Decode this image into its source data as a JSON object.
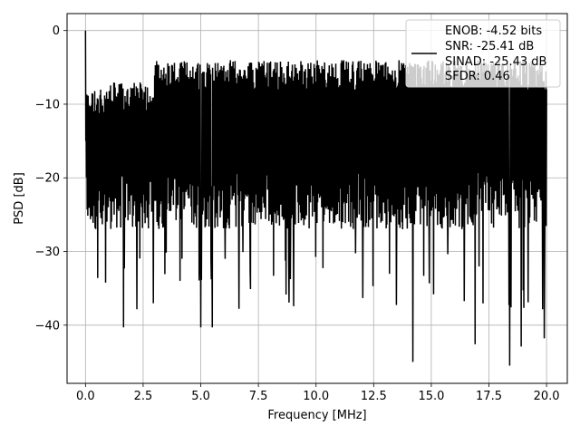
{
  "chart_data": {
    "type": "line",
    "title": "",
    "xlabel": "Frequency [MHz]",
    "ylabel": "PSD [dB]",
    "xlim": [
      -0.8,
      20.9
    ],
    "ylim": [
      -47.9,
      2.3
    ],
    "xticks": [
      0.0,
      2.5,
      5.0,
      7.5,
      10.0,
      12.5,
      15.0,
      17.5,
      20.0
    ],
    "xtick_labels": [
      "0.0",
      "2.5",
      "5.0",
      "7.5",
      "10.0",
      "12.5",
      "15.0",
      "17.5",
      "20.0"
    ],
    "yticks": [
      0,
      -10,
      -20,
      -30,
      -40
    ],
    "ytick_labels": [
      "0",
      "−10",
      "−20",
      "−30",
      "−40"
    ],
    "grid": true,
    "legend_position": "top-right",
    "series": [
      {
        "name": "ENOB: -4.52 bits\nSNR: -25.41 dB\nSINAD: -25.43 dB\nSFDR: 0.46",
        "color": "#000000",
        "x_range": [
          0,
          20
        ],
        "notable_points": [
          {
            "x": 0.0,
            "y": 0.0
          },
          {
            "x": 1.65,
            "y": -40.3
          },
          {
            "x": 5.0,
            "y": -40.3
          },
          {
            "x": 5.5,
            "y": -40.3
          },
          {
            "x": 14.2,
            "y": -45.0
          },
          {
            "x": 16.9,
            "y": -42.6
          },
          {
            "x": 18.4,
            "y": -45.5
          },
          {
            "x": 18.9,
            "y": -42.9
          },
          {
            "x": 19.9,
            "y": -41.8
          }
        ],
        "typical_upper": -7,
        "typical_lower": -27
      }
    ]
  },
  "legend": {
    "lines": [
      "ENOB: -4.52 bits",
      "SNR: -25.41 dB",
      "SINAD: -25.43 dB",
      "SFDR: 0.46"
    ]
  },
  "labels": {
    "xlabel": "Frequency [MHz]",
    "ylabel": "PSD [dB]"
  }
}
